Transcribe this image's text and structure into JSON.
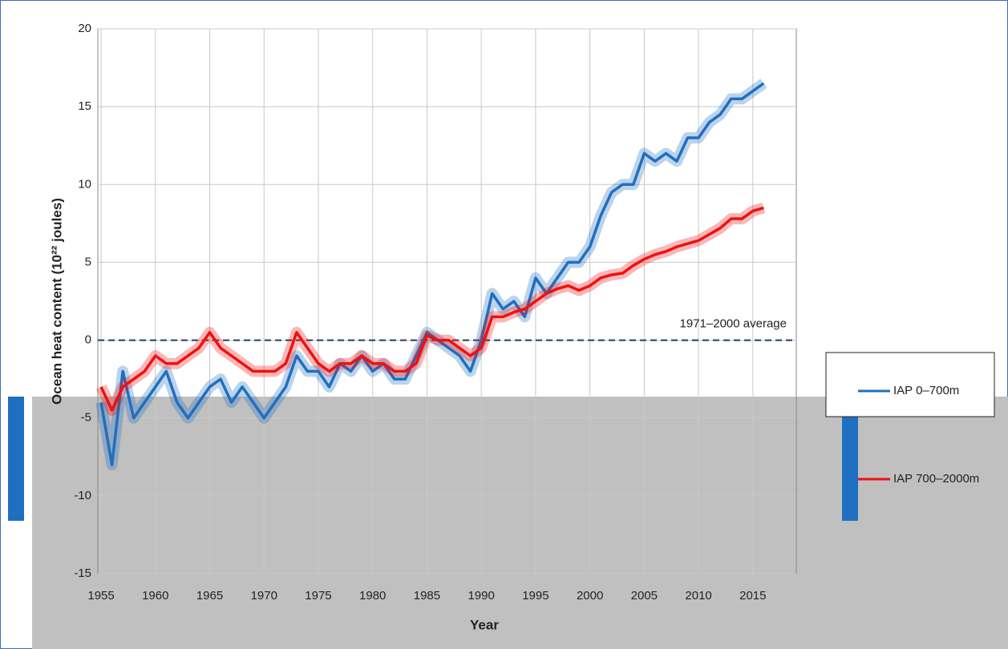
{
  "chart_data": {
    "type": "line",
    "y_label": "Ocean heat content (10²² joules)",
    "x_label": "Year",
    "x": [
      1955,
      1956,
      1957,
      1958,
      1959,
      1960,
      1961,
      1962,
      1963,
      1964,
      1965,
      1966,
      1967,
      1968,
      1969,
      1970,
      1971,
      1972,
      1973,
      1974,
      1975,
      1976,
      1977,
      1978,
      1979,
      1980,
      1981,
      1982,
      1983,
      1984,
      1985,
      1986,
      1987,
      1988,
      1989,
      1990,
      1991,
      1992,
      1993,
      1994,
      1995,
      1996,
      1997,
      1998,
      1999,
      2000,
      2001,
      2002,
      2003,
      2004,
      2005,
      2006,
      2007,
      2008,
      2009,
      2010,
      2011,
      2012,
      2013,
      2014,
      2015,
      2016
    ],
    "series": [
      {
        "name": "IAP 0–700m",
        "color": "#1f6fc0",
        "values": [
          -4,
          -8,
          -2,
          -5,
          -4,
          -3,
          -2,
          -4,
          -5,
          -4,
          -3,
          -2.5,
          -4,
          -3,
          -4,
          -5,
          -4,
          -3,
          -1,
          -2,
          -2,
          -3,
          -1.5,
          -2,
          -1,
          -2,
          -1.5,
          -2.5,
          -2.5,
          -1,
          0.5,
          0,
          -0.5,
          -1,
          -2,
          0,
          3,
          2,
          2.5,
          1.5,
          4,
          3,
          4,
          5,
          5,
          6,
          8,
          9.5,
          10,
          10,
          12,
          11.5,
          12,
          11.5,
          13,
          13,
          14,
          14.5,
          15.5,
          15.5,
          16,
          16.5
        ]
      },
      {
        "name": "IAP 700–2000m",
        "color": "#f01010",
        "values": [
          -3,
          -4.5,
          -3,
          -2.5,
          -2,
          -1,
          -1.5,
          -1.5,
          -1,
          -0.5,
          0.5,
          -0.5,
          -1,
          -1.5,
          -2,
          -2,
          -2,
          -1.5,
          0.5,
          -0.5,
          -1.5,
          -2,
          -1.5,
          -1.5,
          -1,
          -1.5,
          -1.5,
          -2,
          -2,
          -1.5,
          0.3,
          0,
          0,
          -0.5,
          -1,
          -0.5,
          1.5,
          1.5,
          1.8,
          2,
          2.5,
          3,
          3.3,
          3.5,
          3.2,
          3.5,
          4,
          4.2,
          4.3,
          4.8,
          5.2,
          5.5,
          5.7,
          6,
          6.2,
          6.4,
          6.8,
          7.2,
          7.8,
          7.8,
          8.3,
          8.5
        ]
      }
    ],
    "xlim": [
      1954.7,
      2019
    ],
    "ylim": [
      -15,
      20
    ],
    "xticks": [
      1955,
      1960,
      1965,
      1970,
      1975,
      1980,
      1985,
      1990,
      1995,
      2000,
      2005,
      2010,
      2015
    ],
    "yticks": [
      -15,
      -10,
      -5,
      0,
      5,
      10,
      15,
      20
    ],
    "grid": true,
    "reference_line": {
      "value": 0,
      "label": "1971–2000 average"
    },
    "legend": "right"
  }
}
